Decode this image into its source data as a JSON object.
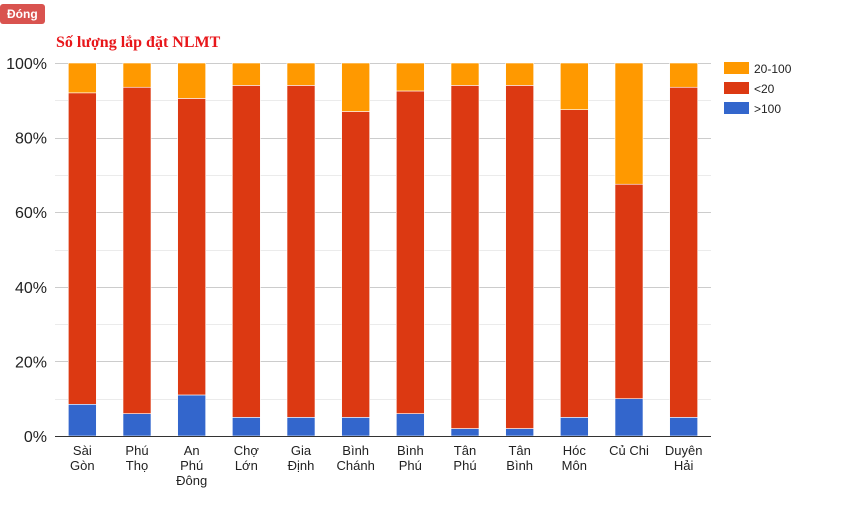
{
  "close_button": {
    "label": "Đóng"
  },
  "chart_data": {
    "type": "bar",
    "stacked": true,
    "percent": true,
    "title": "Số lượng lắp đặt NLMT",
    "xlabel": "",
    "ylabel": "",
    "ylim": [
      0,
      100
    ],
    "yticks": [
      "0%",
      "20%",
      "40%",
      "60%",
      "80%",
      "100%"
    ],
    "grid": true,
    "legend_position": "right",
    "categories": [
      [
        "Sài",
        "Gòn"
      ],
      [
        "Phú",
        "Thọ"
      ],
      [
        "An",
        "Phú",
        "Đông"
      ],
      [
        "Chợ",
        "Lớn"
      ],
      [
        "Gia",
        "Định"
      ],
      [
        "Bình",
        "Chánh"
      ],
      [
        "Bình",
        "Phú"
      ],
      [
        "Tân",
        "Phú"
      ],
      [
        "Tân",
        "Bình"
      ],
      [
        "Hóc",
        "Môn"
      ],
      [
        "Củ Chi"
      ],
      [
        "Duyên",
        "Hải"
      ]
    ],
    "series": [
      {
        "name": ">100",
        "color": "#3366cc",
        "values": [
          8.5,
          6,
          11,
          5,
          5,
          5,
          6,
          2,
          2,
          5,
          10,
          5
        ]
      },
      {
        "name": "<20",
        "color": "#dc3912",
        "values": [
          83.5,
          87.5,
          79.5,
          89,
          89,
          82,
          86.5,
          92,
          92,
          82.5,
          57.5,
          88.5
        ]
      },
      {
        "name": "20-100",
        "color": "#ff9900",
        "values": [
          8,
          6.5,
          9.5,
          6,
          6,
          13,
          7.5,
          6,
          6,
          12.5,
          32.5,
          6.5
        ]
      }
    ],
    "legend_order": [
      "20-100",
      "<20",
      ">100"
    ]
  }
}
